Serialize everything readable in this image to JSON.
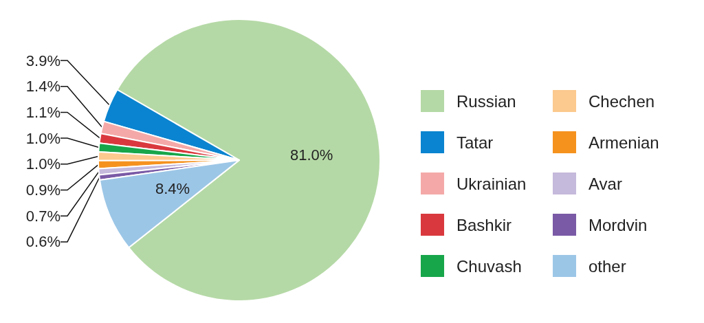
{
  "chart_data": {
    "type": "pie",
    "categories": [
      "Russian",
      "Tatar",
      "Ukrainian",
      "Bashkir",
      "Chuvash",
      "Chechen",
      "Armenian",
      "Avar",
      "Mordvin",
      "other"
    ],
    "values": [
      81.0,
      3.9,
      1.4,
      1.1,
      1.0,
      1.0,
      0.9,
      0.7,
      0.6,
      8.4
    ],
    "colors": [
      "#b5d9a6",
      "#0a84d0",
      "#f4a9a8",
      "#d9393e",
      "#17a64a",
      "#fcc98e",
      "#f5921e",
      "#c5b9dc",
      "#7a5aa6",
      "#9cc6e6"
    ],
    "value_labels": [
      "81.0%",
      "3.9%",
      "1.4%",
      "1.1%",
      "1.0%",
      "1.0%",
      "0.9%",
      "0.7%",
      "0.6%",
      "8.4%"
    ],
    "legend": "right"
  }
}
